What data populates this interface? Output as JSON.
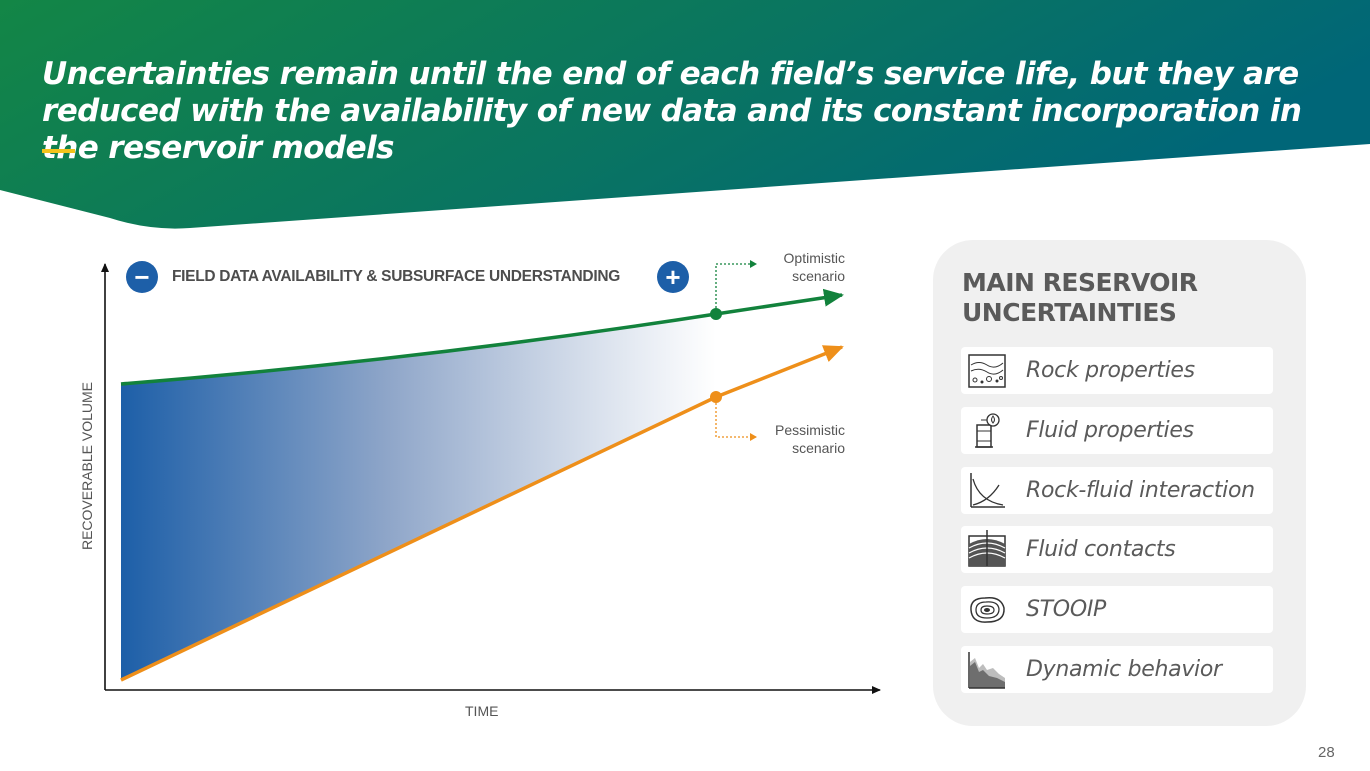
{
  "header": {
    "title": "Uncertainties remain until the end of each field’s service life, but they are reduced with the availability of new data and its constant incorporation in the reservoir models"
  },
  "diagram": {
    "top_label": "FIELD DATA AVAILABILITY  & SUBSURFACE UNDERSTANDING",
    "minus_symbol": "−",
    "plus_symbol": "+",
    "y_axis_label": "RECOVERABLE VOLUME",
    "x_axis_label": "TIME",
    "optimistic_label": "Optimistic scenario",
    "pessimistic_label": "Pessimistic scenario",
    "colors": {
      "optimistic": "#12823c",
      "pessimistic": "#ee8f1a",
      "fill_start": "#1d5fa8",
      "accent_blue": "#1d5fa8"
    }
  },
  "panel": {
    "title": "MAIN RESERVOIR UNCERTAINTIES",
    "items": [
      {
        "label": "Rock properties",
        "icon": "rock-properties-icon"
      },
      {
        "label": "Fluid properties",
        "icon": "fluid-properties-icon"
      },
      {
        "label": "Rock-fluid interaction",
        "icon": "rock-fluid-interaction-icon"
      },
      {
        "label": "Fluid contacts",
        "icon": "fluid-contacts-icon"
      },
      {
        "label": "STOOIP",
        "icon": "stooip-icon"
      },
      {
        "label": "Dynamic behavior",
        "icon": "dynamic-behavior-icon"
      }
    ]
  },
  "footer": {
    "page_number": "28"
  }
}
